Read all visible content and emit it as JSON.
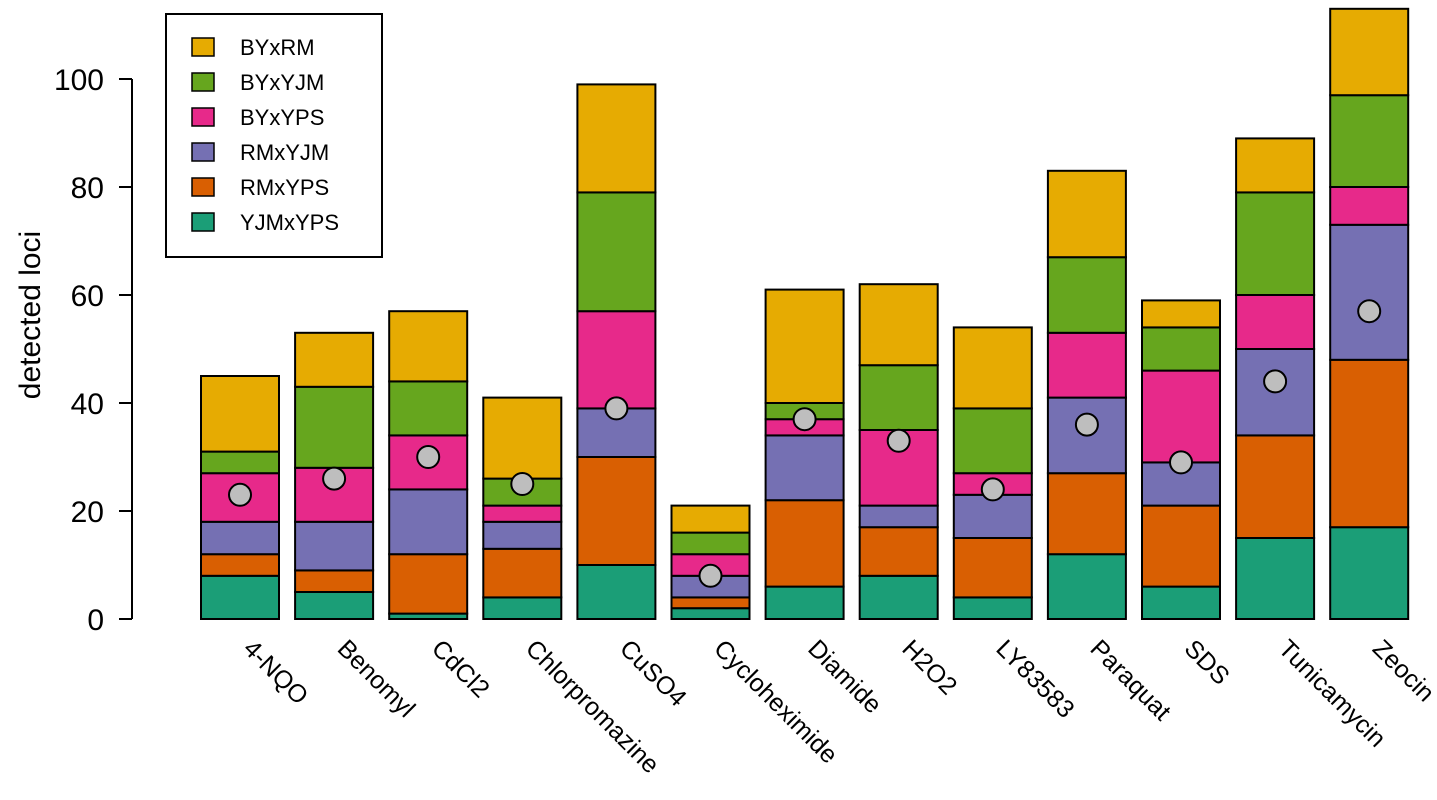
{
  "chart_data": {
    "type": "bar",
    "stacked": true,
    "title": "",
    "xlabel": "",
    "ylabel": "detected loci",
    "ylim": [
      0,
      113
    ],
    "yticks": [
      0,
      20,
      40,
      60,
      80,
      100
    ],
    "grid": false,
    "legend_position": "top-left",
    "categories": [
      "4-NQO",
      "Benomyl",
      "CdCl2",
      "Chlorpromazine",
      "CuSO4",
      "Cycloheximide",
      "Diamide",
      "H2O2",
      "LY83583",
      "Paraquat",
      "SDS",
      "Tunicamycin",
      "Zeocin"
    ],
    "series": [
      {
        "name": "YJMxYPS",
        "color": "#1b9e77",
        "values": [
          8,
          5,
          1,
          4,
          10,
          2,
          6,
          8,
          4,
          12,
          6,
          15,
          17
        ]
      },
      {
        "name": "RMxYPS",
        "color": "#d95f02",
        "values": [
          4,
          4,
          11,
          9,
          20,
          2,
          16,
          9,
          11,
          15,
          15,
          19,
          31
        ]
      },
      {
        "name": "RMxYJM",
        "color": "#7570b3",
        "values": [
          6,
          9,
          12,
          5,
          9,
          4,
          12,
          4,
          8,
          14,
          8,
          16,
          25
        ]
      },
      {
        "name": "BYxYPS",
        "color": "#e7298a",
        "values": [
          9,
          10,
          10,
          3,
          18,
          4,
          3,
          14,
          4,
          12,
          17,
          10,
          7
        ]
      },
      {
        "name": "BYxYJM",
        "color": "#66a61e",
        "values": [
          4,
          15,
          10,
          5,
          22,
          4,
          3,
          12,
          12,
          14,
          8,
          19,
          17
        ]
      },
      {
        "name": "BYxRM",
        "color": "#e6ab02",
        "values": [
          14,
          10,
          13,
          15,
          20,
          5,
          21,
          15,
          15,
          16,
          5,
          10,
          16
        ]
      }
    ],
    "points": {
      "color": "#bebebe",
      "values": [
        23,
        26,
        30,
        25,
        39,
        8,
        37,
        33,
        24,
        36,
        29,
        44,
        57
      ]
    },
    "legend_order": [
      "BYxRM",
      "BYxYJM",
      "BYxYPS",
      "RMxYJM",
      "RMxYPS",
      "YJMxYPS"
    ]
  }
}
